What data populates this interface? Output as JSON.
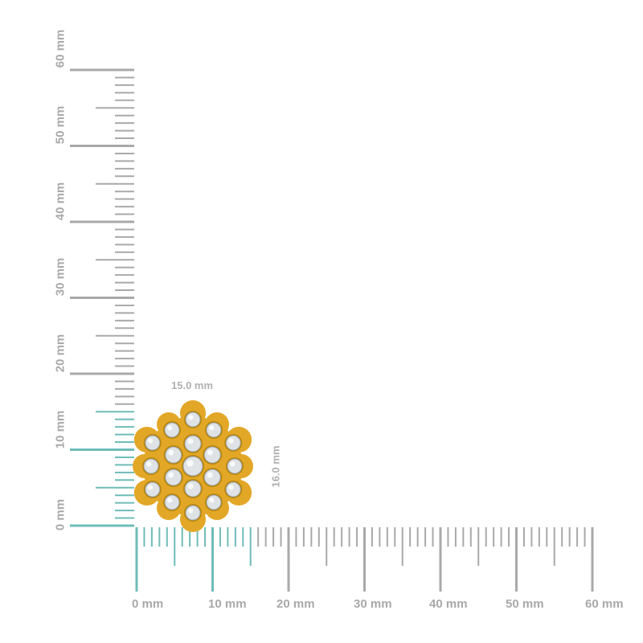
{
  "rulers": {
    "unit": "mm",
    "max_mm": 60,
    "highlight_mm": 15,
    "ruler_color": "#a9a9a9",
    "highlight_color": "#6fbcb8",
    "horizontal_labels": [
      "0 mm",
      "10 mm",
      "20 mm",
      "30 mm",
      "40 mm",
      "50 mm",
      "60 mm"
    ],
    "vertical_labels": [
      "0 mm",
      "10 mm",
      "20 mm",
      "30 mm",
      "40 mm",
      "50 mm",
      "60 mm"
    ]
  },
  "product": {
    "name": "diamond-cluster-earring",
    "metal_color": "#e3a727",
    "stone_color": "#dfe3e6",
    "width_label": "15.0 mm",
    "height_label": "16.0 mm"
  }
}
